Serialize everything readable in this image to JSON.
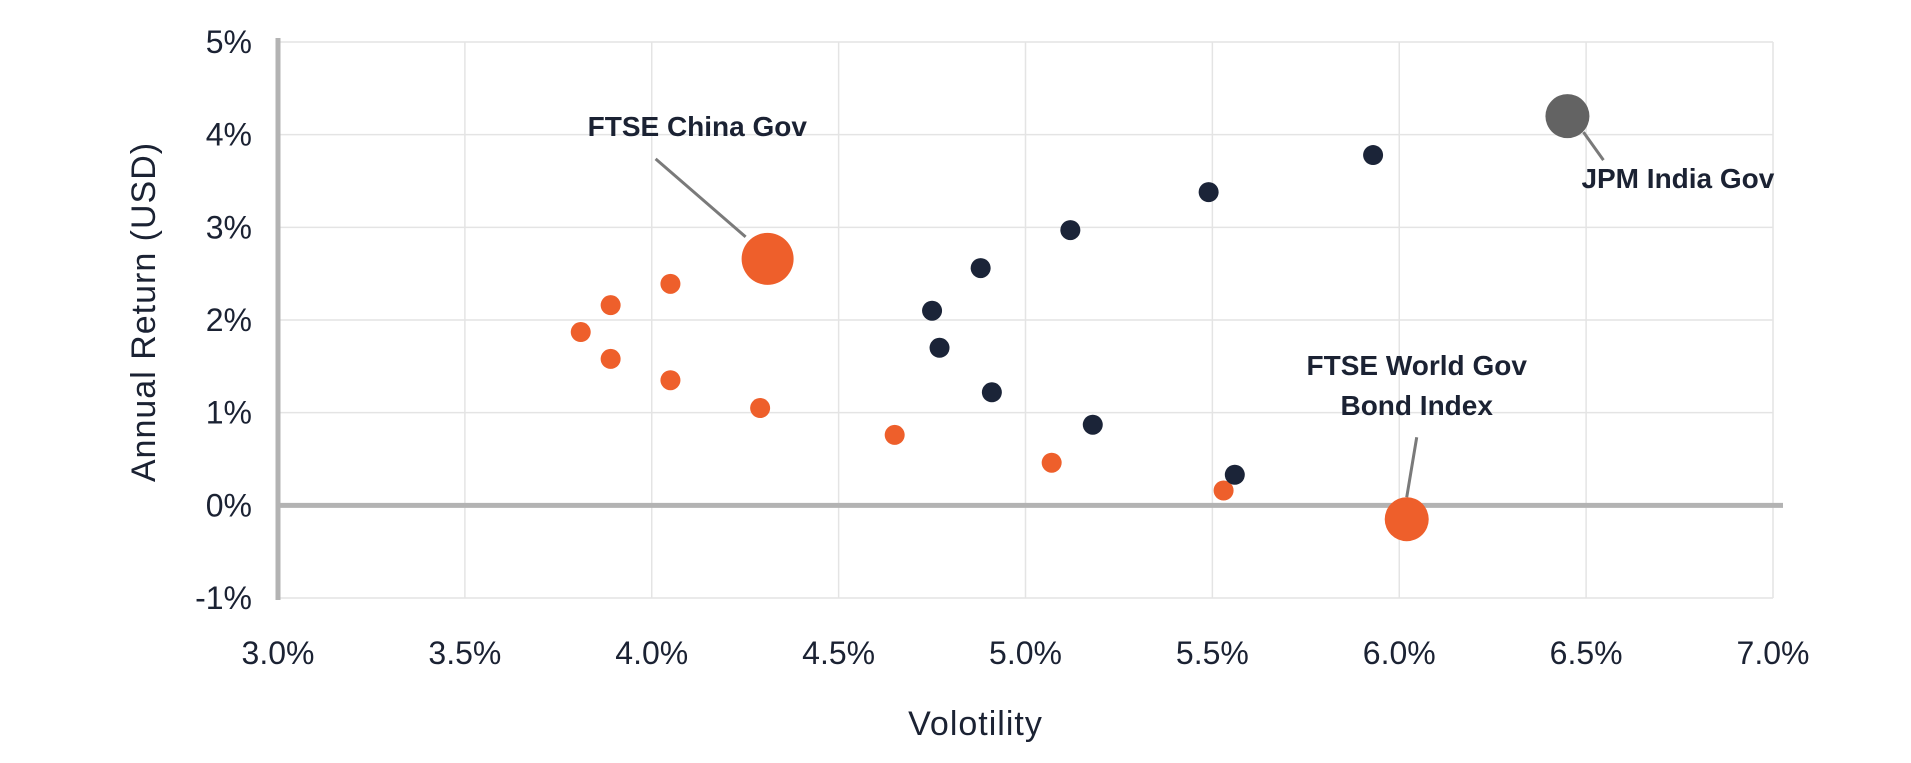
{
  "chart_data": {
    "type": "scatter",
    "title": "",
    "xlabel": "Volotility",
    "ylabel": "Annual Return (USD)",
    "xlim": [
      3.0,
      7.0
    ],
    "ylim": [
      -1,
      5
    ],
    "x_ticks": [
      3.0,
      3.5,
      4.0,
      4.5,
      5.0,
      5.5,
      6.0,
      6.5,
      7.0
    ],
    "x_tick_labels": [
      "3.0%",
      "3.5%",
      "4.0%",
      "4.5%",
      "5.0%",
      "5.5%",
      "6.0%",
      "6.5%",
      "7.0%"
    ],
    "y_ticks": [
      -1,
      0,
      1,
      2,
      3,
      4,
      5
    ],
    "y_tick_labels": [
      "-1%",
      "0%",
      "1%",
      "2%",
      "3%",
      "4%",
      "5%"
    ],
    "grid": true,
    "series": [
      {
        "name": "orange",
        "color": "#ee5f2b",
        "points": [
          {
            "x": 3.81,
            "y": 1.87
          },
          {
            "x": 3.89,
            "y": 2.16
          },
          {
            "x": 3.89,
            "y": 1.58
          },
          {
            "x": 4.05,
            "y": 2.39
          },
          {
            "x": 4.05,
            "y": 1.35
          },
          {
            "x": 4.29,
            "y": 1.05
          },
          {
            "x": 4.65,
            "y": 0.76
          },
          {
            "x": 5.07,
            "y": 0.46
          },
          {
            "x": 5.53,
            "y": 0.16
          }
        ]
      },
      {
        "name": "navy",
        "color": "#1b2438",
        "points": [
          {
            "x": 4.75,
            "y": 2.1
          },
          {
            "x": 4.77,
            "y": 1.7
          },
          {
            "x": 4.88,
            "y": 2.56
          },
          {
            "x": 4.91,
            "y": 1.22
          },
          {
            "x": 5.12,
            "y": 2.97
          },
          {
            "x": 5.18,
            "y": 0.87
          },
          {
            "x": 5.49,
            "y": 3.38
          },
          {
            "x": 5.56,
            "y": 0.33
          },
          {
            "x": 5.93,
            "y": 3.78
          }
        ]
      }
    ],
    "highlights": [
      {
        "label_lines": [
          "FTSE China Gov"
        ],
        "x": 4.31,
        "y": 2.66,
        "color": "#ee5f2b",
        "anchor": "upper-left"
      },
      {
        "label_lines": [
          "FTSE World Gov",
          "Bond Index"
        ],
        "x": 6.02,
        "y": -0.15,
        "color": "#ee5f2b",
        "anchor": "above"
      },
      {
        "label_lines": [
          "JPM India Gov"
        ],
        "x": 6.45,
        "y": 4.2,
        "color": "#636363",
        "anchor": "lower-right"
      }
    ]
  }
}
